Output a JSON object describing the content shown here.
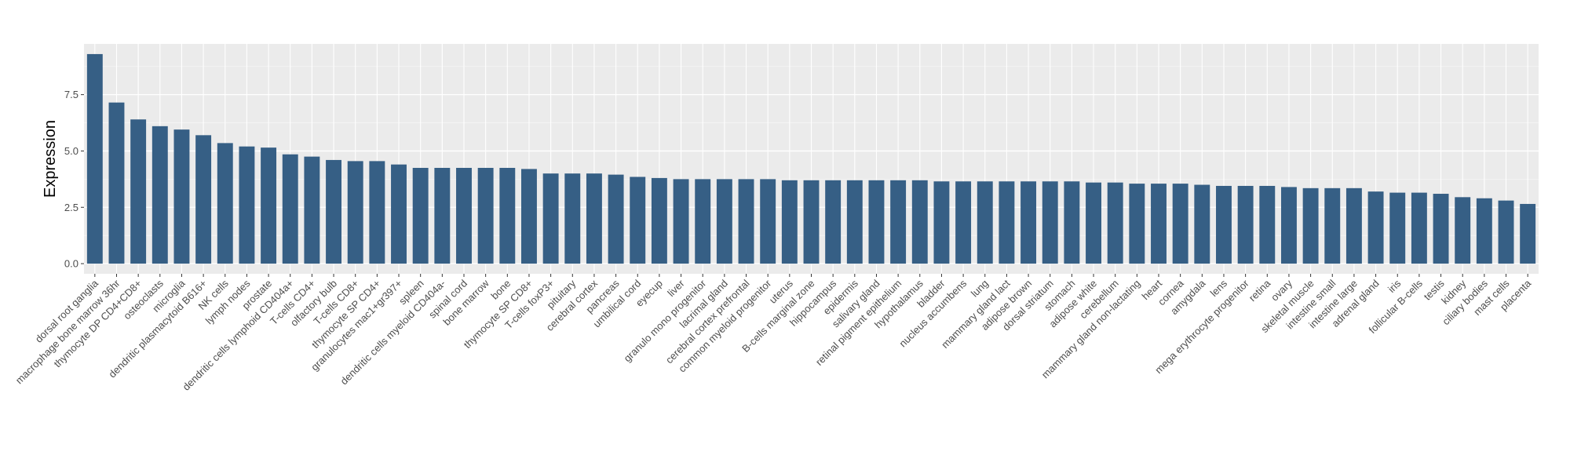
{
  "chart_data": {
    "type": "bar",
    "xlabel": "",
    "ylabel": "Expression",
    "ylim": [
      -0.45,
      9.75
    ],
    "yticks": [
      0.0,
      2.5,
      5.0,
      7.5
    ],
    "ytick_labels": [
      "0.0",
      "2.5",
      "5.0",
      "7.5"
    ],
    "grid": true,
    "legend": "none",
    "categories": [
      "dorsal root ganglia",
      "macrophage bone marrow 36hr",
      "thymocyte DP CD4+CD8+",
      "osteoclasts",
      "microglia",
      "dendritic plasmacytoid B616+",
      "NK cells",
      "lymph nodes",
      "prostate",
      "dendritic cells lymphoid CD404a+",
      "T-cells CD4+",
      "olfactory bulb",
      "T-cells CD8+",
      "thymocyte SP CD4+",
      "granulocytes mac1+gr397+",
      "spleen",
      "dendritic cells myeloid CD404a-",
      "spinal cord",
      "bone marrow",
      "bone",
      "thymocyte SP CD8+",
      "T-cells foxP3+",
      "pituitary",
      "cerebral cortex",
      "pancreas",
      "umbilical cord",
      "eyecup",
      "liver",
      "granulo mono progenitor",
      "lacrimal gland",
      "cerebral cortex prefrontal",
      "common myeloid progenitor",
      "uterus",
      "B-cells marginal zone",
      "hippocampus",
      "epidermis",
      "salivary gland",
      "retinal pigment epithelium",
      "hypothalamus",
      "bladder",
      "nucleus accumbens",
      "lung",
      "mammary gland  lact",
      "adipose brown",
      "dorsal striatum",
      "stomach",
      "adipose white",
      "cerebellum",
      "mammary gland non-lactating",
      "heart",
      "cornea",
      "amygdala",
      "lens",
      "mega erythrocyte progenitor",
      "retina",
      "ovary",
      "skeletal muscle",
      "intestine small",
      "intestine large",
      "adrenal gland",
      "iris",
      "follicular B-cells",
      "testis",
      "kidney",
      "ciliary bodies",
      "mast cells",
      "placenta"
    ],
    "values": [
      9.3,
      7.15,
      6.4,
      6.1,
      5.95,
      5.7,
      5.35,
      5.2,
      5.15,
      4.85,
      4.75,
      4.6,
      4.55,
      4.55,
      4.4,
      4.25,
      4.25,
      4.25,
      4.25,
      4.25,
      4.2,
      4.0,
      4.0,
      4.0,
      3.95,
      3.85,
      3.8,
      3.75,
      3.75,
      3.75,
      3.75,
      3.75,
      3.7,
      3.7,
      3.7,
      3.7,
      3.7,
      3.7,
      3.7,
      3.65,
      3.65,
      3.65,
      3.65,
      3.65,
      3.65,
      3.65,
      3.6,
      3.6,
      3.55,
      3.55,
      3.55,
      3.5,
      3.45,
      3.45,
      3.45,
      3.4,
      3.35,
      3.35,
      3.35,
      3.2,
      3.15,
      3.15,
      3.1,
      2.95,
      2.9,
      2.8,
      2.65
    ],
    "colors": {
      "bar": "#365f85",
      "panel_bg": "#ebebeb",
      "grid_major": "#ffffff",
      "grid_minor": "#f5f5f5",
      "tick": "#333333"
    }
  }
}
